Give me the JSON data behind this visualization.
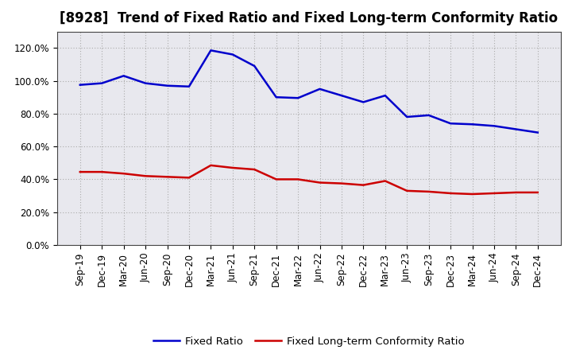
{
  "title": "[8928]  Trend of Fixed Ratio and Fixed Long-term Conformity Ratio",
  "x_labels": [
    "Sep-19",
    "Dec-19",
    "Mar-20",
    "Jun-20",
    "Sep-20",
    "Dec-20",
    "Mar-21",
    "Jun-21",
    "Sep-21",
    "Dec-21",
    "Mar-22",
    "Jun-22",
    "Sep-22",
    "Dec-22",
    "Mar-23",
    "Jun-23",
    "Sep-23",
    "Dec-23",
    "Mar-24",
    "Jun-24",
    "Sep-24",
    "Dec-24"
  ],
  "fixed_ratio": [
    97.5,
    98.5,
    103.0,
    98.5,
    97.0,
    96.5,
    118.5,
    116.0,
    109.0,
    90.0,
    89.5,
    95.0,
    91.0,
    87.0,
    91.0,
    78.0,
    79.0,
    74.0,
    73.5,
    72.5,
    70.5,
    68.5
  ],
  "fixed_lt_ratio": [
    44.5,
    44.5,
    43.5,
    42.0,
    41.5,
    41.0,
    48.5,
    47.0,
    46.0,
    40.0,
    40.0,
    38.0,
    37.5,
    36.5,
    39.0,
    33.0,
    32.5,
    31.5,
    31.0,
    31.5,
    32.0,
    32.0
  ],
  "fixed_ratio_color": "#0000CC",
  "fixed_lt_ratio_color": "#CC0000",
  "background_color": "#FFFFFF",
  "plot_bg_color": "#E8E8EE",
  "grid_color": "#AAAAAA",
  "spine_color": "#444444",
  "ylim": [
    0,
    130
  ],
  "yticks": [
    0,
    20,
    40,
    60,
    80,
    100,
    120
  ],
  "ytick_labels": [
    "0.0%",
    "20.0%",
    "40.0%",
    "60.0%",
    "80.0%",
    "100.0%",
    "120.0%"
  ],
  "legend_fixed_ratio": "Fixed Ratio",
  "legend_fixed_lt_ratio": "Fixed Long-term Conformity Ratio",
  "title_fontsize": 12,
  "axis_fontsize": 8.5,
  "legend_fontsize": 9.5,
  "line_width": 1.8
}
